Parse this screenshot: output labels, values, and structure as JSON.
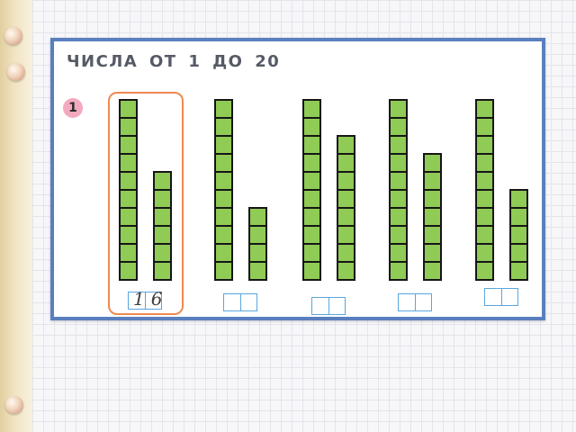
{
  "title": "ЧИСЛА  ОТ  1  ДО  20",
  "exercise_number": "1",
  "groups": [
    {
      "tens": 10,
      "ones": 6,
      "answer": "16",
      "highlighted": true
    },
    {
      "tens": 10,
      "ones": 4,
      "answer": ""
    },
    {
      "tens": 10,
      "ones": 8,
      "answer": ""
    },
    {
      "tens": 10,
      "ones": 7,
      "answer": ""
    },
    {
      "tens": 10,
      "ones": 5,
      "answer": ""
    }
  ],
  "colors": {
    "frame": "#5a7fbe",
    "cell_fill": "#8fcb55",
    "highlight": "#ef8a50",
    "answer_box": "#5aa6dd",
    "badge": "#f3aabf"
  }
}
